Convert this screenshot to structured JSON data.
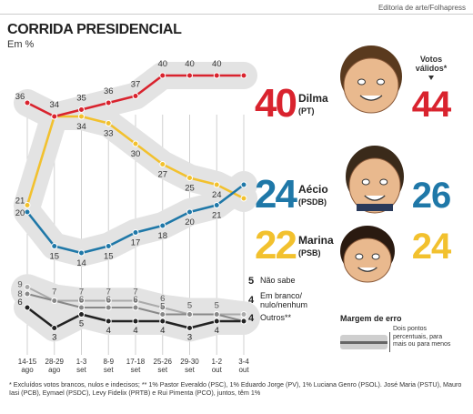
{
  "header": {
    "credit": "Editoria de arte/Folhapress",
    "title": "CORRIDA PRESIDENCIAL",
    "subtitle": "Em %"
  },
  "colors": {
    "dilma": "#d9232e",
    "aecio": "#1f78a8",
    "marina": "#f2c12e",
    "outros": "#222222",
    "band": "#e3e3e3",
    "grid": "#d0d0d0"
  },
  "chart_data": {
    "type": "line",
    "categories": [
      [
        "14-15",
        "ago"
      ],
      [
        "28-29",
        "ago"
      ],
      [
        "1-3",
        "set"
      ],
      [
        "8-9",
        "set"
      ],
      [
        "17-18",
        "set"
      ],
      [
        "25-26",
        "set"
      ],
      [
        "29-30",
        "set"
      ],
      [
        "1-2",
        "out"
      ],
      [
        "3-4",
        "out"
      ]
    ],
    "ylim": [
      0,
      43
    ],
    "series": [
      {
        "name": "Dilma",
        "key": "dilma",
        "values": [
          36,
          34,
          35,
          36,
          37,
          40,
          40,
          40,
          40
        ]
      },
      {
        "name": "Aécio",
        "key": "aecio",
        "values": [
          20,
          15,
          14,
          15,
          17,
          18,
          20,
          21,
          24
        ]
      },
      {
        "name": "Marina",
        "key": "marina",
        "values": [
          21,
          34,
          34,
          33,
          30,
          27,
          25,
          24,
          22
        ]
      },
      {
        "name": "Não sabe",
        "key": "naosabe",
        "values": [
          9,
          7,
          7,
          7,
          7,
          6,
          5,
          5,
          5
        ]
      },
      {
        "name": "Em branco/nulo/nenhum",
        "key": "branco",
        "values": [
          8,
          7,
          6,
          6,
          6,
          5,
          5,
          5,
          4
        ]
      },
      {
        "name": "Outros**",
        "key": "outros",
        "values": [
          6,
          3,
          5,
          4,
          4,
          4,
          3,
          4,
          4
        ]
      }
    ],
    "labels_shown": {
      "dilma": [
        36,
        34,
        35,
        36,
        37,
        40,
        40,
        40,
        null
      ],
      "aecio": [
        20,
        15,
        14,
        15,
        17,
        18,
        20,
        21,
        null
      ],
      "marina": [
        21,
        null,
        34,
        33,
        30,
        27,
        25,
        24,
        null
      ],
      "naosabe": [
        9,
        7,
        7,
        7,
        7,
        6,
        5,
        5,
        null
      ],
      "branco": [
        8,
        null,
        6,
        6,
        6,
        5,
        null,
        null,
        null
      ],
      "outros": [
        6,
        3,
        5,
        4,
        4,
        4,
        3,
        4,
        null
      ]
    },
    "candidates": [
      {
        "key": "dilma",
        "value": "40",
        "name": "Dilma",
        "party": "(PT)",
        "valid": "44"
      },
      {
        "key": "aecio",
        "value": "24",
        "name": "Aécio",
        "party": "(PSDB)",
        "valid": "26"
      },
      {
        "key": "marina",
        "value": "22",
        "name": "Marina",
        "party": "(PSB)",
        "valid": "24"
      }
    ],
    "valid_votes_label": "Votos válidos*",
    "small_legend": [
      {
        "value": "5",
        "label": "Não sabe"
      },
      {
        "value": "4",
        "label": "Em branco/ nulo/nenhum"
      },
      {
        "value": "4",
        "label": "Outros**"
      }
    ]
  },
  "legend": {
    "margin_title": "Margem de erro",
    "margin_text": "Dois pontos percentuais, para mais ou para menos"
  },
  "footnote": "* Excluídos votos brancos, nulos e indecisos;  ** 1% Pastor Everaldo (PSC), 1% Eduardo Jorge (PV), 1% Luciana Genro (PSOL). José Maria (PSTU), Mauro Iasi (PCB), Eymael (PSDC), Levy Fidelix (PRTB) e Rui Pimenta (PCO), juntos, têm 1%"
}
